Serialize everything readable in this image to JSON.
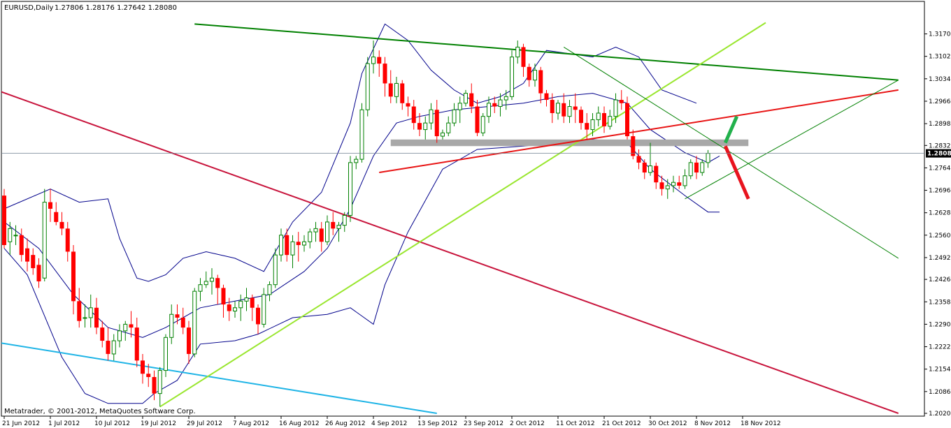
{
  "header": {
    "symbol": "EURUSD,Daily",
    "ohlc": "1.27806 1.28176 1.27642 1.28080"
  },
  "footer": {
    "copyright": "Metatrader, © 2001-2012, MetaQuotes Software Corp."
  },
  "current_price_label": "1.28080",
  "colors": {
    "bull": "#008000",
    "bear": "#ff0000",
    "band": "#00008b",
    "top_trend": "#008000",
    "lime": "#99e62e",
    "crimson": "#c8143c",
    "red_line": "#e81414",
    "cyan": "#1eb4e6",
    "grey_zone": "#a8a8a8",
    "forecast_up": "#22b14c",
    "forecast_down": "#e8141e"
  },
  "chart_data": {
    "type": "candlestick",
    "ylim": [
      1.202,
      1.3204
    ],
    "current_price": 1.2808,
    "y_ticks": [
      "1.31700",
      "1.31020",
      "1.30340",
      "1.29660",
      "1.28980",
      "1.28320",
      "1.27640",
      "1.26960",
      "1.26280",
      "1.25600",
      "1.24920",
      "1.24260",
      "1.23580",
      "1.22900",
      "1.22220",
      "1.21540",
      "1.20860",
      "1.20200"
    ],
    "x_labels": [
      "21 Jun 2012",
      "1 Jul 2012",
      "10 Jul 2012",
      "19 Jul 2012",
      "29 Jul 2012",
      "7 Aug 2012",
      "16 Aug 2012",
      "26 Aug 2012",
      "4 Sep 2012",
      "13 Sep 2012",
      "23 Sep 2012",
      "2 Oct 2012",
      "11 Oct 2012",
      "21 Oct 2012",
      "30 Oct 2012",
      "8 Nov 2012",
      "18 Nov 2012"
    ],
    "x_label_index": [
      0,
      8,
      16,
      24,
      32,
      40,
      48,
      56,
      64,
      72,
      80,
      88,
      96,
      104,
      112,
      120,
      128
    ],
    "candles": [
      [
        1.268,
        1.27,
        1.252,
        1.253
      ],
      [
        1.254,
        1.26,
        1.25,
        1.258
      ],
      [
        1.256,
        1.259,
        1.253,
        1.256
      ],
      [
        1.256,
        1.258,
        1.248,
        1.25
      ],
      [
        1.252,
        1.255,
        1.245,
        1.248
      ],
      [
        1.25,
        1.252,
        1.244,
        1.246
      ],
      [
        1.247,
        1.249,
        1.24,
        1.242
      ],
      [
        1.243,
        1.27,
        1.242,
        1.266
      ],
      [
        1.266,
        1.27,
        1.26,
        1.264
      ],
      [
        1.263,
        1.266,
        1.259,
        1.26
      ],
      [
        1.26,
        1.263,
        1.256,
        1.258
      ],
      [
        1.258,
        1.26,
        1.248,
        1.251
      ],
      [
        1.251,
        1.253,
        1.232,
        1.236
      ],
      [
        1.236,
        1.24,
        1.228,
        1.23
      ],
      [
        1.231,
        1.235,
        1.228,
        1.231
      ],
      [
        1.231,
        1.238,
        1.228,
        1.234
      ],
      [
        1.234,
        1.237,
        1.226,
        1.228
      ],
      [
        1.228,
        1.23,
        1.222,
        1.224
      ],
      [
        1.224,
        1.228,
        1.218,
        1.22
      ],
      [
        1.22,
        1.226,
        1.218,
        1.224
      ],
      [
        1.224,
        1.229,
        1.222,
        1.227
      ],
      [
        1.227,
        1.23,
        1.224,
        1.229
      ],
      [
        1.229,
        1.233,
        1.225,
        1.228
      ],
      [
        1.228,
        1.231,
        1.216,
        1.218
      ],
      [
        1.218,
        1.22,
        1.211,
        1.214
      ],
      [
        1.214,
        1.217,
        1.21,
        1.213
      ],
      [
        1.213,
        1.215,
        1.206,
        1.208
      ],
      [
        1.208,
        1.216,
        1.204,
        1.215
      ],
      [
        1.215,
        1.226,
        1.213,
        1.225
      ],
      [
        1.225,
        1.235,
        1.223,
        1.232
      ],
      [
        1.232,
        1.235,
        1.229,
        1.231
      ],
      [
        1.231,
        1.234,
        1.226,
        1.228
      ],
      [
        1.228,
        1.23,
        1.217,
        1.22
      ],
      [
        1.22,
        1.24,
        1.219,
        1.239
      ],
      [
        1.239,
        1.243,
        1.236,
        1.241
      ],
      [
        1.241,
        1.245,
        1.24,
        1.242
      ],
      [
        1.242,
        1.246,
        1.238,
        1.243
      ],
      [
        1.243,
        1.244,
        1.235,
        1.24
      ],
      [
        1.24,
        1.241,
        1.231,
        1.235
      ],
      [
        1.235,
        1.237,
        1.23,
        1.233
      ],
      [
        1.233,
        1.236,
        1.231,
        1.234
      ],
      [
        1.234,
        1.238,
        1.23,
        1.236
      ],
      [
        1.236,
        1.24,
        1.233,
        1.237
      ],
      [
        1.237,
        1.238,
        1.23,
        1.234
      ],
      [
        1.234,
        1.235,
        1.226,
        1.229
      ],
      [
        1.229,
        1.24,
        1.228,
        1.238
      ],
      [
        1.238,
        1.242,
        1.236,
        1.241
      ],
      [
        1.241,
        1.252,
        1.24,
        1.25
      ],
      [
        1.25,
        1.258,
        1.248,
        1.256
      ],
      [
        1.256,
        1.258,
        1.248,
        1.25
      ],
      [
        1.25,
        1.256,
        1.246,
        1.254
      ],
      [
        1.254,
        1.257,
        1.248,
        1.253
      ],
      [
        1.253,
        1.256,
        1.251,
        1.254
      ],
      [
        1.254,
        1.258,
        1.252,
        1.257
      ],
      [
        1.257,
        1.26,
        1.254,
        1.258
      ],
      [
        1.258,
        1.26,
        1.251,
        1.254
      ],
      [
        1.254,
        1.262,
        1.253,
        1.26
      ],
      [
        1.26,
        1.263,
        1.256,
        1.258
      ],
      [
        1.258,
        1.26,
        1.254,
        1.259
      ],
      [
        1.259,
        1.263,
        1.257,
        1.262
      ],
      [
        1.262,
        1.28,
        1.26,
        1.278
      ],
      [
        1.278,
        1.28,
        1.276,
        1.279
      ],
      [
        1.279,
        1.296,
        1.278,
        1.294
      ],
      [
        1.294,
        1.31,
        1.292,
        1.308
      ],
      [
        1.308,
        1.315,
        1.305,
        1.31
      ],
      [
        1.31,
        1.312,
        1.304,
        1.308
      ],
      [
        1.308,
        1.31,
        1.298,
        1.302
      ],
      [
        1.302,
        1.306,
        1.296,
        1.298
      ],
      [
        1.298,
        1.304,
        1.296,
        1.302
      ],
      [
        1.302,
        1.303,
        1.294,
        1.296
      ],
      [
        1.296,
        1.298,
        1.292,
        1.295
      ],
      [
        1.295,
        1.297,
        1.288,
        1.29
      ],
      [
        1.29,
        1.293,
        1.286,
        1.288
      ],
      [
        1.288,
        1.292,
        1.285,
        1.29
      ],
      [
        1.29,
        1.296,
        1.288,
        1.294
      ],
      [
        1.294,
        1.297,
        1.284,
        1.286
      ],
      [
        1.286,
        1.288,
        1.285,
        1.287
      ],
      [
        1.287,
        1.292,
        1.286,
        1.29
      ],
      [
        1.29,
        1.296,
        1.289,
        1.294
      ],
      [
        1.294,
        1.298,
        1.29,
        1.296
      ],
      [
        1.296,
        1.3,
        1.295,
        1.299
      ],
      [
        1.299,
        1.302,
        1.293,
        1.295
      ],
      [
        1.295,
        1.297,
        1.286,
        1.287
      ],
      [
        1.287,
        1.293,
        1.286,
        1.292
      ],
      [
        1.292,
        1.298,
        1.29,
        1.296
      ],
      [
        1.296,
        1.298,
        1.293,
        1.295
      ],
      [
        1.295,
        1.299,
        1.292,
        1.297
      ],
      [
        1.297,
        1.3,
        1.294,
        1.298
      ],
      [
        1.298,
        1.312,
        1.297,
        1.31
      ],
      [
        1.31,
        1.315,
        1.308,
        1.313
      ],
      [
        1.313,
        1.314,
        1.304,
        1.307
      ],
      [
        1.307,
        1.308,
        1.301,
        1.303
      ],
      [
        1.303,
        1.308,
        1.301,
        1.306
      ],
      [
        1.306,
        1.307,
        1.296,
        1.299
      ],
      [
        1.299,
        1.3,
        1.295,
        1.297
      ],
      [
        1.297,
        1.299,
        1.29,
        1.293
      ],
      [
        1.293,
        1.297,
        1.291,
        1.296
      ],
      [
        1.296,
        1.299,
        1.29,
        1.292
      ],
      [
        1.292,
        1.297,
        1.29,
        1.295
      ],
      [
        1.295,
        1.299,
        1.29,
        1.294
      ],
      [
        1.294,
        1.295,
        1.288,
        1.29
      ],
      [
        1.29,
        1.293,
        1.285,
        1.288
      ],
      [
        1.288,
        1.293,
        1.286,
        1.291
      ],
      [
        1.291,
        1.295,
        1.289,
        1.293
      ],
      [
        1.293,
        1.295,
        1.287,
        1.289
      ],
      [
        1.289,
        1.294,
        1.288,
        1.292
      ],
      [
        1.292,
        1.299,
        1.29,
        1.297
      ],
      [
        1.297,
        1.3,
        1.294,
        1.296
      ],
      [
        1.296,
        1.298,
        1.285,
        1.286
      ],
      [
        1.286,
        1.288,
        1.279,
        1.28
      ],
      [
        1.28,
        1.282,
        1.276,
        1.278
      ],
      [
        1.278,
        1.279,
        1.273,
        1.275
      ],
      [
        1.275,
        1.284,
        1.274,
        1.277
      ],
      [
        1.277,
        1.278,
        1.27,
        1.272
      ],
      [
        1.272,
        1.274,
        1.268,
        1.27
      ],
      [
        1.27,
        1.273,
        1.267,
        1.271
      ],
      [
        1.271,
        1.274,
        1.269,
        1.272
      ],
      [
        1.272,
        1.274,
        1.27,
        1.271
      ],
      [
        1.271,
        1.276,
        1.27,
        1.274
      ],
      [
        1.274,
        1.279,
        1.273,
        1.278
      ],
      [
        1.278,
        1.28,
        1.273,
        1.275
      ],
      [
        1.275,
        1.279,
        1.274,
        1.278
      ],
      [
        1.278,
        1.2818,
        1.2764,
        1.2808
      ]
    ],
    "bands": {
      "upper": [
        [
          0,
          1.264
        ],
        [
          8,
          1.27
        ],
        [
          13,
          1.266
        ],
        [
          18,
          1.267
        ],
        [
          20,
          1.255
        ],
        [
          23,
          1.243
        ],
        [
          25,
          1.242
        ],
        [
          28,
          1.244
        ],
        [
          31,
          1.249
        ],
        [
          35,
          1.251
        ],
        [
          40,
          1.249
        ],
        [
          45,
          1.245
        ],
        [
          50,
          1.26
        ],
        [
          55,
          1.269
        ],
        [
          60,
          1.29
        ],
        [
          62,
          1.305
        ],
        [
          66,
          1.32
        ],
        [
          70,
          1.315
        ],
        [
          74,
          1.306
        ],
        [
          78,
          1.3
        ],
        [
          82,
          1.296
        ],
        [
          86,
          1.298
        ],
        [
          90,
          1.302
        ],
        [
          94,
          1.312
        ],
        [
          98,
          1.311
        ],
        [
          102,
          1.31
        ],
        [
          106,
          1.313
        ],
        [
          110,
          1.31
        ],
        [
          114,
          1.3
        ],
        [
          120,
          1.296
        ]
      ],
      "middle": [
        [
          0,
          1.26
        ],
        [
          6,
          1.252
        ],
        [
          12,
          1.238
        ],
        [
          18,
          1.228
        ],
        [
          24,
          1.225
        ],
        [
          28,
          1.228
        ],
        [
          34,
          1.234
        ],
        [
          40,
          1.236
        ],
        [
          46,
          1.238
        ],
        [
          52,
          1.245
        ],
        [
          56,
          1.252
        ],
        [
          60,
          1.264
        ],
        [
          64,
          1.28
        ],
        [
          68,
          1.29
        ],
        [
          72,
          1.292
        ],
        [
          78,
          1.294
        ],
        [
          84,
          1.295
        ],
        [
          90,
          1.296
        ],
        [
          96,
          1.298
        ],
        [
          102,
          1.299
        ],
        [
          108,
          1.296
        ],
        [
          112,
          1.288
        ],
        [
          118,
          1.281
        ],
        [
          122,
          1.278
        ],
        [
          124,
          1.28
        ]
      ],
      "lower": [
        [
          0,
          1.252
        ],
        [
          4,
          1.244
        ],
        [
          10,
          1.219
        ],
        [
          14,
          1.208
        ],
        [
          18,
          1.205
        ],
        [
          24,
          1.205
        ],
        [
          26,
          1.208
        ],
        [
          30,
          1.212
        ],
        [
          34,
          1.223
        ],
        [
          40,
          1.224
        ],
        [
          44,
          1.226
        ],
        [
          50,
          1.231
        ],
        [
          56,
          1.232
        ],
        [
          60,
          1.234
        ],
        [
          64,
          1.229
        ],
        [
          66,
          1.241
        ],
        [
          70,
          1.257
        ],
        [
          76,
          1.276
        ],
        [
          82,
          1.282
        ],
        [
          90,
          1.283
        ],
        [
          96,
          1.284
        ],
        [
          102,
          1.285
        ],
        [
          108,
          1.284
        ],
        [
          112,
          1.276
        ],
        [
          118,
          1.268
        ],
        [
          122,
          1.263
        ],
        [
          124,
          1.263
        ]
      ]
    },
    "support_zone": {
      "x_from": 67,
      "x_to": 129,
      "y_from": 1.283,
      "y_to": 1.285
    },
    "trendlines": [
      {
        "from": [
          33,
          1.32
        ],
        "to": [
          155,
          1.303
        ],
        "color": "top_trend",
        "w": 2
      },
      {
        "from": [
          -3,
          1.301
        ],
        "to": [
          155,
          1.202
        ],
        "color": "crimson",
        "w": 2
      },
      {
        "from": [
          -3,
          1.224
        ],
        "to": [
          75,
          1.202
        ],
        "color": "cyan",
        "w": 2
      },
      {
        "from": [
          27,
          1.204
        ],
        "to": [
          132,
          1.3204
        ],
        "color": "lime",
        "w": 2
      },
      {
        "from": [
          65,
          1.275
        ],
        "to": [
          155,
          1.3
        ],
        "color": "red_line",
        "w": 2
      },
      {
        "from": [
          97,
          1.313
        ],
        "to": [
          155,
          1.249
        ],
        "color": "top_trend",
        "w": 1
      },
      {
        "from": [
          118,
          1.267
        ],
        "to": [
          155,
          1.303
        ],
        "color": "top_trend",
        "w": 1
      }
    ],
    "forecast_arrows": [
      {
        "from": [
          125,
          1.284
        ],
        "to": [
          127,
          1.292
        ],
        "color": "forecast_up",
        "w": 5
      },
      {
        "from": [
          125,
          1.283
        ],
        "to": [
          129,
          1.267
        ],
        "color": "forecast_down",
        "w": 5
      }
    ]
  }
}
